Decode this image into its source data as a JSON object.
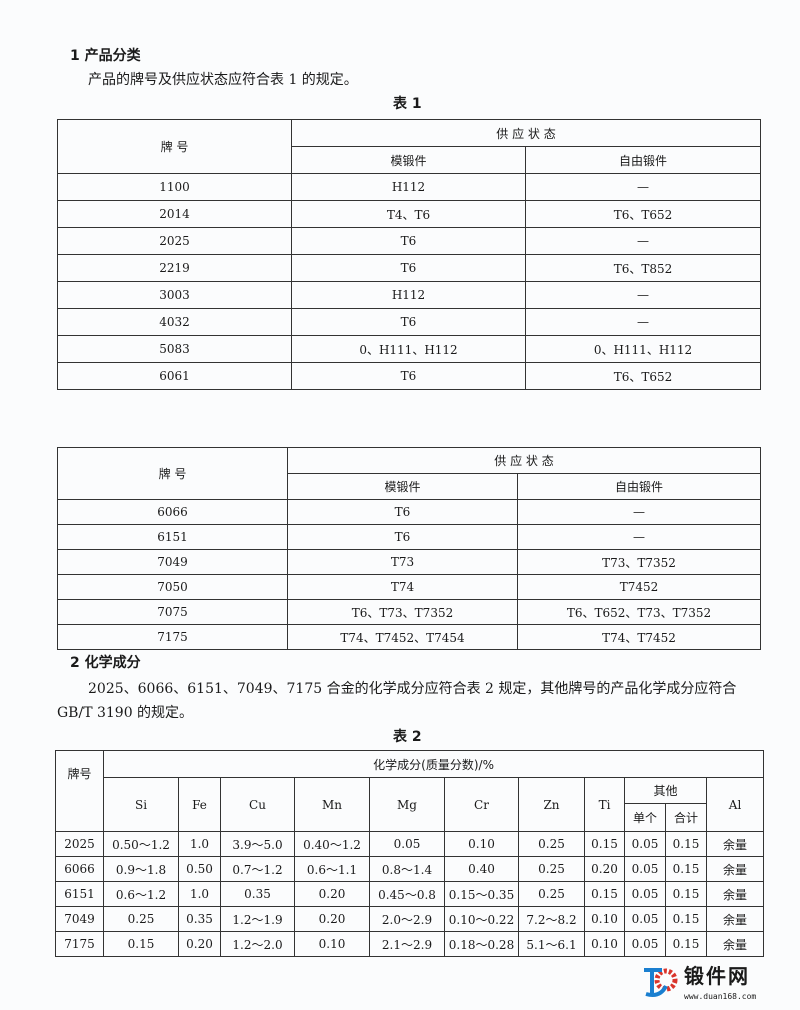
{
  "section1": {
    "heading": "1  产品分类",
    "para": "产品的牌号及供应状态应符合表 1 的规定。",
    "table_caption": "表 1"
  },
  "table1": {
    "headers": {
      "grade": "牌    号",
      "supply": "供 应 状 态",
      "die": "模锻件",
      "free": "自由锻件"
    },
    "rows": [
      [
        "1100",
        "H112",
        "—"
      ],
      [
        "2014",
        "T4、T6",
        "T6、T652"
      ],
      [
        "2025",
        "T6",
        "—"
      ],
      [
        "2219",
        "T6",
        "T6、T852"
      ],
      [
        "3003",
        "H112",
        "—"
      ],
      [
        "4032",
        "T6",
        "—"
      ],
      [
        "5083",
        "0、H111、H112",
        "0、H111、H112"
      ],
      [
        "6061",
        "T6",
        "T6、T652"
      ]
    ]
  },
  "table1_cont": {
    "headers": {
      "grade": "牌    号",
      "supply": "供 应 状 态",
      "die": "模锻件",
      "free": "自由锻件"
    },
    "rows": [
      [
        "6066",
        "T6",
        "—"
      ],
      [
        "6151",
        "T6",
        "—"
      ],
      [
        "7049",
        "T73",
        "T73、T7352"
      ],
      [
        "7050",
        "T74",
        "T7452"
      ],
      [
        "7075",
        "T6、T73、T7352",
        "T6、T652、T73、T7352"
      ],
      [
        "7175",
        "T74、T7452、T7454",
        "T74、T7452"
      ]
    ]
  },
  "section2": {
    "heading": "2  化学成分",
    "para1": "2025、6066、6151、7049、7175 合金的化学成分应符合表 2 规定，其他牌号的产品化学成分应符合",
    "para2": "GB/T 3190 的规定。",
    "table_caption": "表 2"
  },
  "table2": {
    "grade": "牌号",
    "title": "化学成分(质量分数)/%",
    "elements": [
      "Si",
      "Fe",
      "Cu",
      "Mn",
      "Mg",
      "Cr",
      "Zn",
      "Ti"
    ],
    "other": "其他",
    "single": "单个",
    "total": "合计",
    "al": "Al",
    "rows": [
      [
        "2025",
        "0.50～1.2",
        "1.0",
        "3.9～5.0",
        "0.40～1.2",
        "0.05",
        "0.10",
        "0.25",
        "0.15",
        "0.05",
        "0.15",
        "余量"
      ],
      [
        "6066",
        "0.9～1.8",
        "0.50",
        "0.7～1.2",
        "0.6～1.1",
        "0.8～1.4",
        "0.40",
        "0.25",
        "0.20",
        "0.05",
        "0.15",
        "余量"
      ],
      [
        "6151",
        "0.6～1.2",
        "1.0",
        "0.35",
        "0.20",
        "0.45～0.8",
        "0.15～0.35",
        "0.25",
        "0.15",
        "0.05",
        "0.15",
        "余量"
      ],
      [
        "7049",
        "0.25",
        "0.35",
        "1.2～1.9",
        "0.20",
        "2.0～2.9",
        "0.10～0.22",
        "7.2～8.2",
        "0.10",
        "0.05",
        "0.15",
        "余量"
      ],
      [
        "7175",
        "0.15",
        "0.20",
        "1.2～2.0",
        "0.10",
        "2.1～2.9",
        "0.18～0.28",
        "5.1～6.1",
        "0.10",
        "0.05",
        "0.15",
        "余量"
      ]
    ]
  },
  "logo": {
    "name": "锻件网",
    "url": "www.duan168.com",
    "colors": {
      "blue": "#1a7fd0",
      "red": "#d9342b"
    }
  }
}
